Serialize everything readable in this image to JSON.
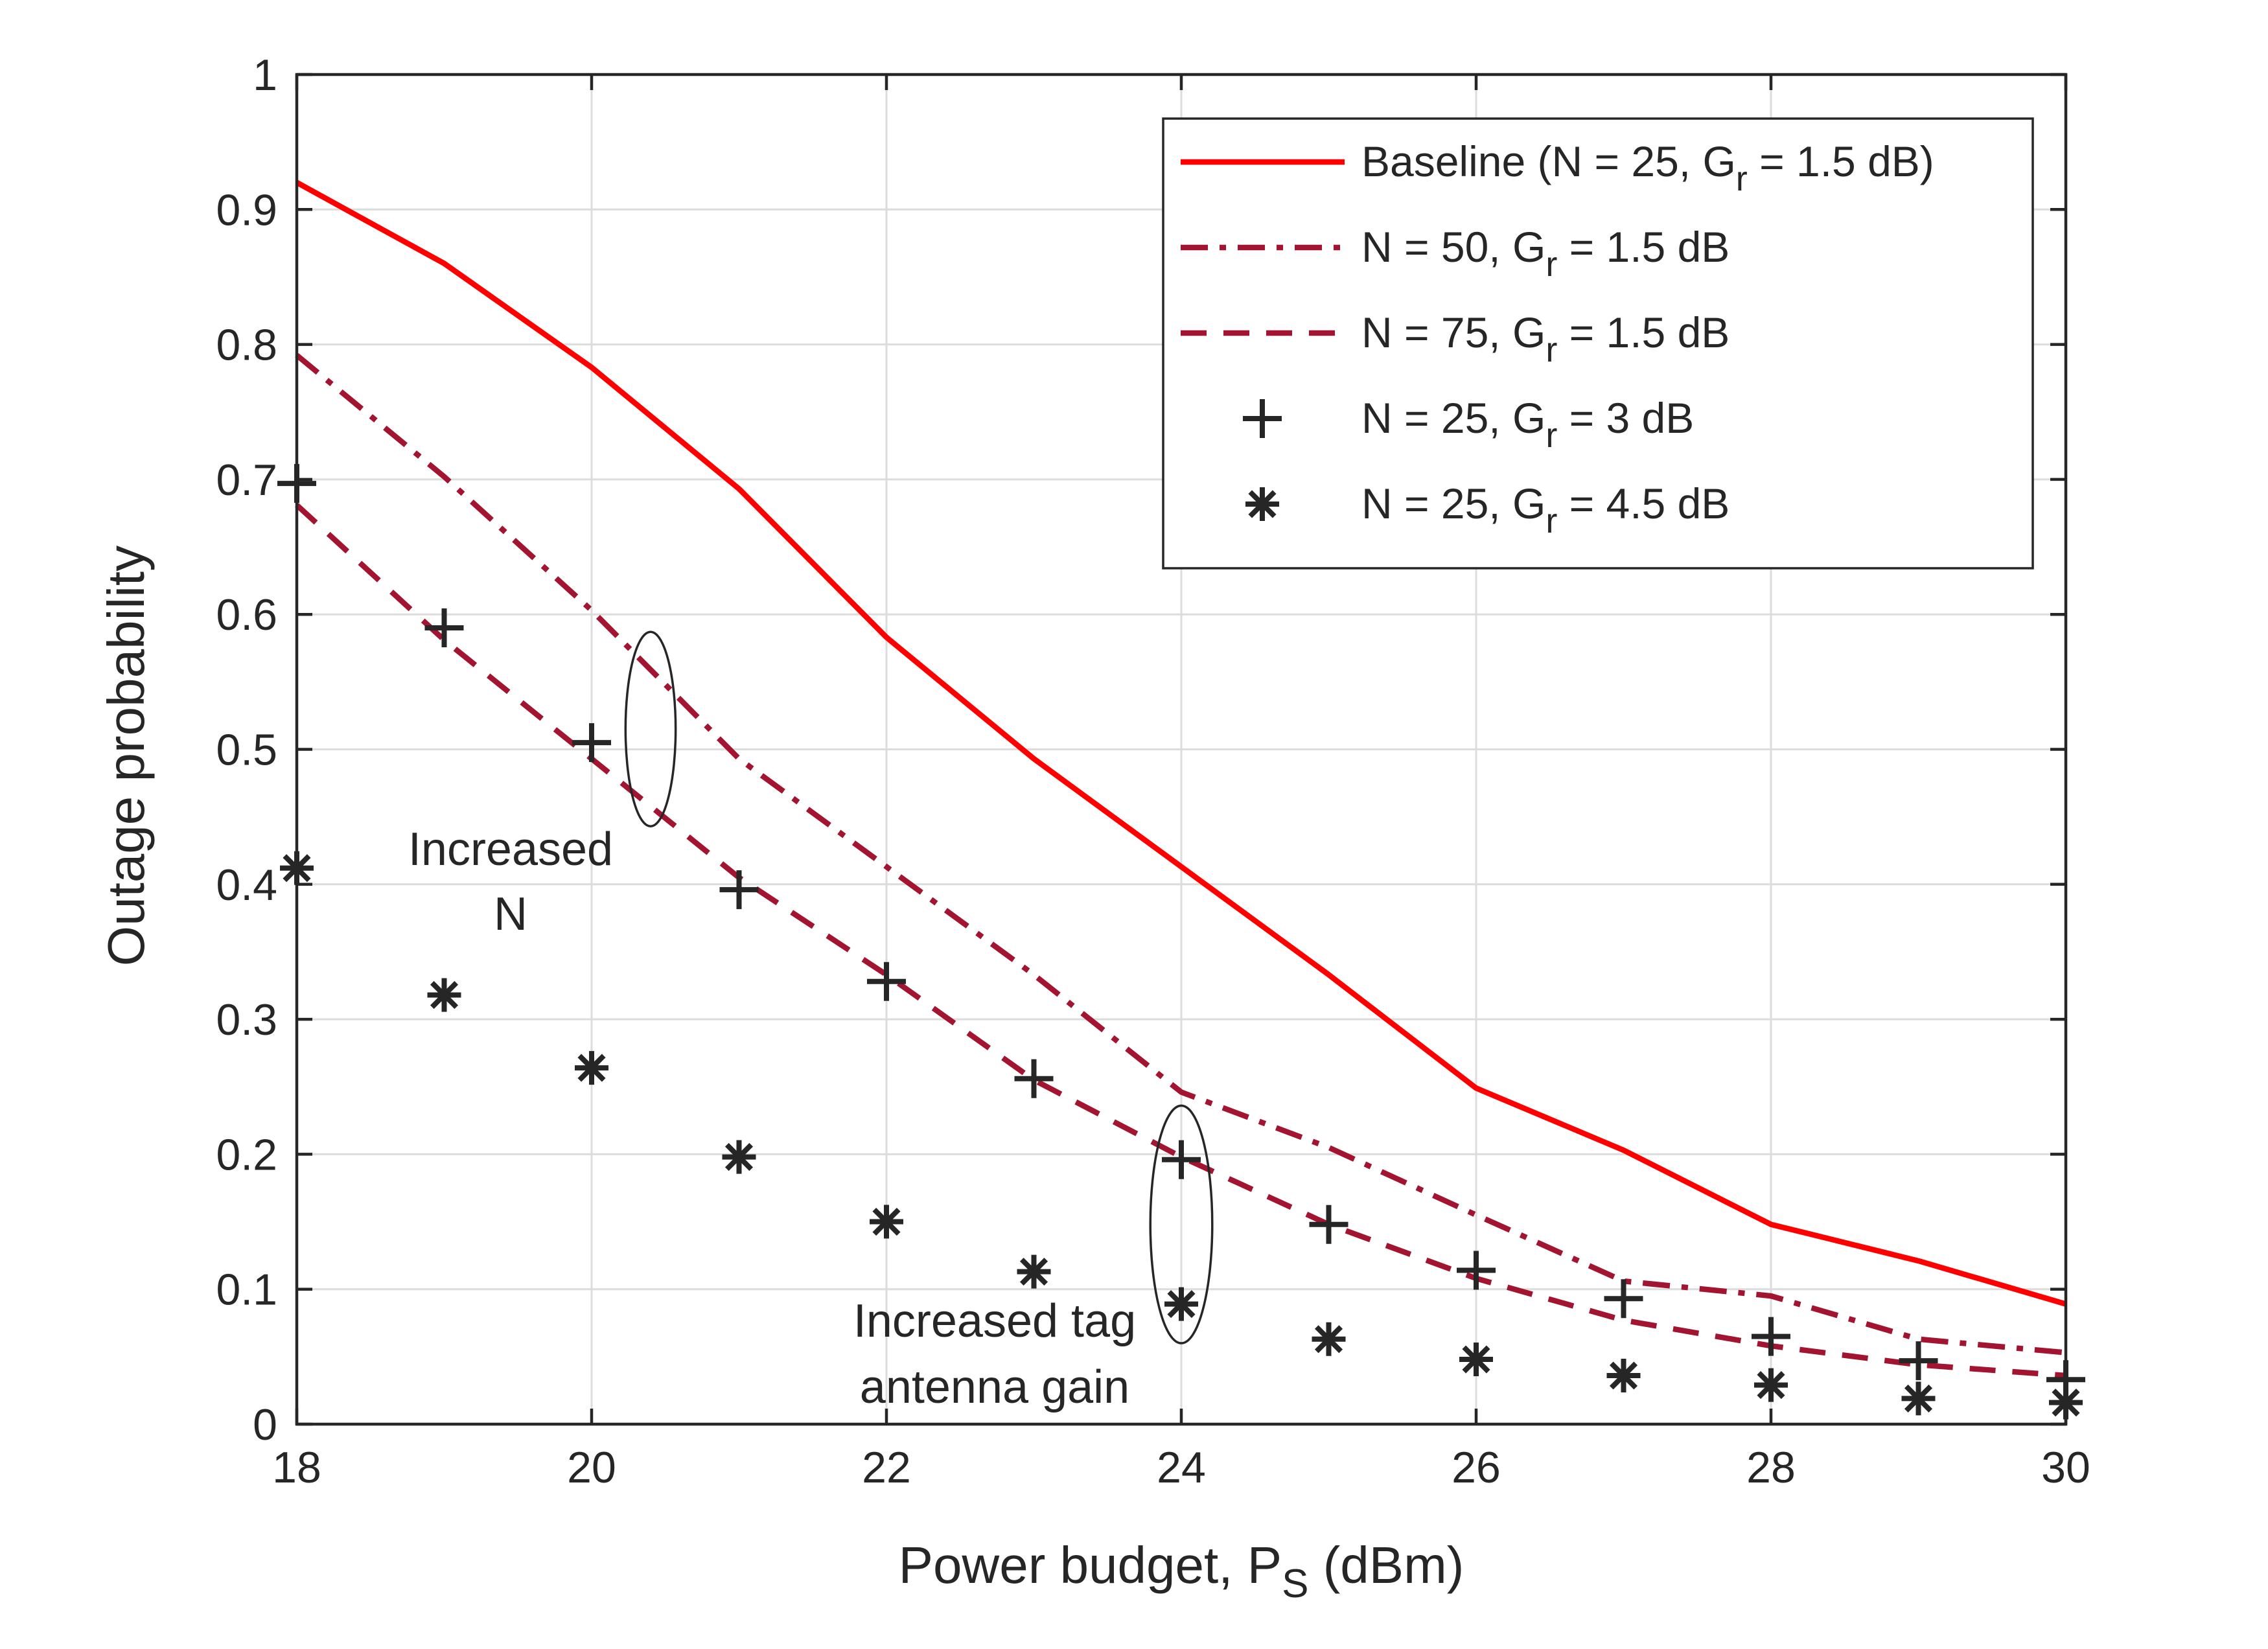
{
  "chart_data": {
    "type": "line",
    "title": "",
    "xlabel": "Power budget, P",
    "xlabel_sub": "S",
    "xlabel_suffix": " (dBm)",
    "ylabel": "Outage probability",
    "xlim": [
      18,
      30
    ],
    "ylim": [
      0,
      1
    ],
    "xticks": [
      18,
      20,
      22,
      24,
      26,
      28,
      30
    ],
    "xtick_labels": [
      "18",
      "20",
      "22",
      "24",
      "26",
      "28",
      "30"
    ],
    "yticks": [
      0,
      0.1,
      0.2,
      0.3,
      0.4,
      0.5,
      0.6,
      0.7,
      0.8,
      0.9,
      1
    ],
    "ytick_labels": [
      "0",
      "0.1",
      "0.2",
      "0.3",
      "0.4",
      "0.5",
      "0.6",
      "0.7",
      "0.8",
      "0.9",
      "1"
    ],
    "grid": true,
    "legend_position": "top-right",
    "x": [
      18,
      19,
      20,
      21,
      22,
      23,
      24,
      25,
      26,
      27,
      28,
      29,
      30
    ],
    "series": [
      {
        "id": "baseline",
        "label_main": "Baseline (N = 25, G",
        "label_sub": "r",
        "label_tail": " = 1.5 dB)",
        "style": "solid",
        "marker": "none",
        "color": "#FF0000",
        "values": [
          0.92,
          0.86,
          0.783,
          0.693,
          0.583,
          0.493,
          0.413,
          0.333,
          0.249,
          0.203,
          0.148,
          0.121,
          0.089
        ]
      },
      {
        "id": "n50",
        "label_main": "N = 50, G",
        "label_sub": "r",
        "label_tail": " = 1.5 dB",
        "style": "dashdot",
        "marker": "none",
        "color": "#A2142F",
        "values": [
          0.792,
          0.702,
          0.603,
          0.493,
          0.413,
          0.333,
          0.246,
          0.205,
          0.155,
          0.106,
          0.095,
          0.063,
          0.053
        ]
      },
      {
        "id": "n75",
        "label_main": "N = 75, G",
        "label_sub": "r",
        "label_tail": " = 1.5 dB",
        "style": "dashed",
        "marker": "none",
        "color": "#A2142F",
        "values": [
          0.681,
          0.581,
          0.493,
          0.405,
          0.333,
          0.255,
          0.198,
          0.148,
          0.108,
          0.077,
          0.058,
          0.044,
          0.036
        ]
      },
      {
        "id": "g3",
        "label_main": "N = 25, G",
        "label_sub": "r",
        "label_tail": " = 3 dB",
        "style": "none",
        "marker": "plus",
        "color": "#262626",
        "values": [
          0.697,
          0.59,
          0.505,
          0.396,
          0.328,
          0.256,
          0.196,
          0.148,
          0.114,
          0.093,
          0.065,
          0.047,
          0.033
        ]
      },
      {
        "id": "g45",
        "label_main": "N = 25, G",
        "label_sub": "r",
        "label_tail": " = 4.5 dB",
        "style": "none",
        "marker": "asterisk",
        "color": "#262626",
        "values": [
          0.412,
          0.318,
          0.264,
          0.198,
          0.15,
          0.113,
          0.089,
          0.063,
          0.048,
          0.036,
          0.029,
          0.019,
          0.016
        ]
      }
    ],
    "annotations": [
      {
        "id": "increased-n",
        "lines": [
          "Increased",
          "N"
        ],
        "ellipse_at": {
          "x": 20.4,
          "y": 0.515,
          "rx": 0.17,
          "ry": 0.072
        }
      },
      {
        "id": "increased-tag-gain",
        "lines": [
          "Increased tag",
          "antenna gain"
        ],
        "ellipse_at": {
          "x": 24.0,
          "y": 0.148,
          "rx": 0.21,
          "ry": 0.088
        }
      }
    ]
  }
}
